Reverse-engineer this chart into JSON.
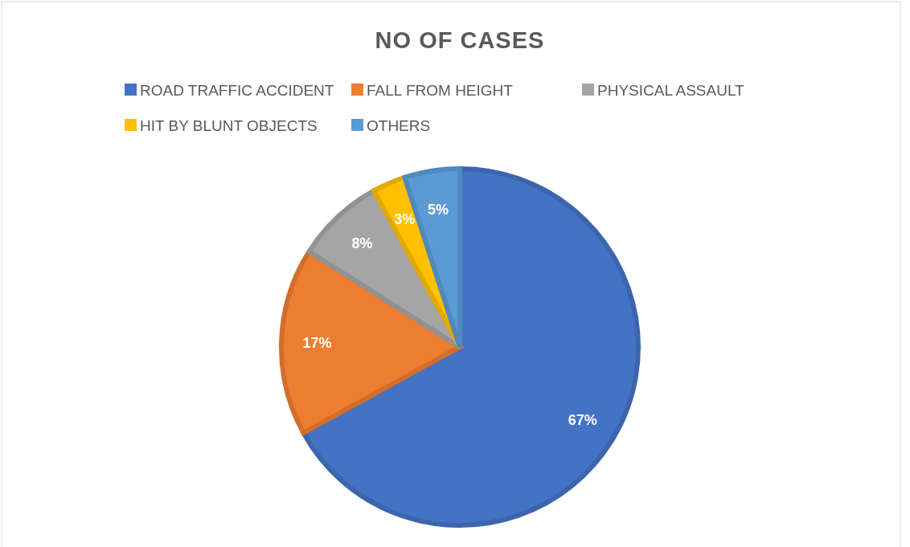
{
  "chart_data": {
    "type": "pie",
    "title": "NO  OF  CASES",
    "categories": [
      "ROAD  TRAFFIC  ACCIDENT",
      "FALL  FROM  HEIGHT",
      "PHYSICAL  ASSAULT",
      "HIT  BY  BLUNT  OBJECTS",
      "OTHERS"
    ],
    "values": [
      67,
      17,
      8,
      3,
      5
    ],
    "value_labels": [
      "67%",
      "17%",
      "8%",
      "3%",
      "5%"
    ],
    "colors": [
      "#4472c4",
      "#ed7d31",
      "#a5a5a5",
      "#ffc000",
      "#5b9bd5"
    ],
    "legend": "top"
  }
}
